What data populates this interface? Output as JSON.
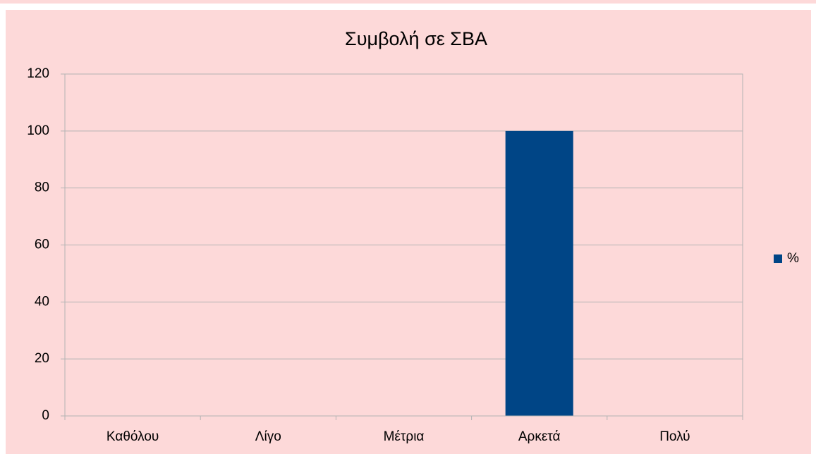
{
  "chart_data": {
    "type": "bar",
    "title": "Συμβολή σε ΣΒΑ",
    "categories": [
      "Καθόλου",
      "Λίγο",
      "Μέτρια",
      "Αρκετά",
      "Πολύ"
    ],
    "series": [
      {
        "name": "%",
        "color": "#004586",
        "values": [
          0,
          0,
          0,
          100,
          0
        ]
      }
    ],
    "ylim": [
      0,
      120
    ],
    "yticks": [
      0,
      20,
      40,
      60,
      80,
      100,
      120
    ],
    "grid": true,
    "legend": "right"
  }
}
